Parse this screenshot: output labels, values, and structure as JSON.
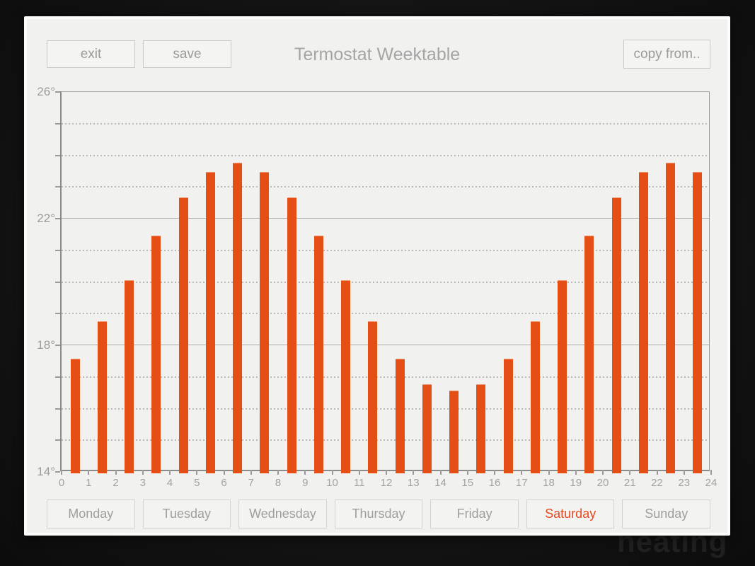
{
  "window": {
    "title": "Termostat Weektable"
  },
  "toolbar": {
    "exit_label": "exit",
    "save_label": "save",
    "copy_label": "copy from.."
  },
  "chart_data": {
    "type": "bar",
    "title": "Termostat Weektable",
    "categories": [
      0,
      1,
      2,
      3,
      4,
      5,
      6,
      7,
      8,
      9,
      10,
      11,
      12,
      13,
      14,
      15,
      16,
      17,
      18,
      19,
      20,
      21,
      22,
      23
    ],
    "values": [
      17.5,
      18.7,
      20,
      21.4,
      22.6,
      23.4,
      23.7,
      23.4,
      22.6,
      21.4,
      20,
      18.7,
      17.5,
      16.7,
      16.5,
      16.7,
      17.5,
      18.7,
      20,
      21.4,
      22.6,
      23.4,
      23.7,
      23.4
    ],
    "xlabel": "",
    "ylabel": "",
    "ylim": [
      14,
      26
    ],
    "xlim": [
      0,
      24
    ],
    "ytick_major": [
      {
        "value": 26,
        "label": "26°"
      },
      {
        "value": 22,
        "label": "22°"
      },
      {
        "value": 18,
        "label": "18°"
      },
      {
        "value": 14,
        "label": "14°"
      }
    ],
    "ytick_minor_step": 1,
    "xtick_labels": [
      "0",
      "1",
      "2",
      "3",
      "4",
      "5",
      "6",
      "7",
      "8",
      "9",
      "10",
      "11",
      "12",
      "13",
      "14",
      "15",
      "16",
      "17",
      "18",
      "19",
      "20",
      "21",
      "22",
      "23",
      "24"
    ],
    "grid": "solid major lines, dashed per-degree lines",
    "legend": "none",
    "bar_color": "#e54e15"
  },
  "tabs": {
    "days": [
      {
        "label": "Monday",
        "selected": false
      },
      {
        "label": "Tuesday",
        "selected": false
      },
      {
        "label": "Wednesday",
        "selected": false
      },
      {
        "label": "Thursday",
        "selected": false
      },
      {
        "label": "Friday",
        "selected": false
      },
      {
        "label": "Saturday",
        "selected": true
      },
      {
        "label": "Sunday",
        "selected": false
      }
    ],
    "selected_color": "#e8481c"
  },
  "watermark": {
    "text": "heating"
  },
  "colors": {
    "accent": "#e54e15",
    "page_background": "#141414",
    "content_background": "#f1f1ef",
    "text_muted": "#9b9b9b"
  }
}
